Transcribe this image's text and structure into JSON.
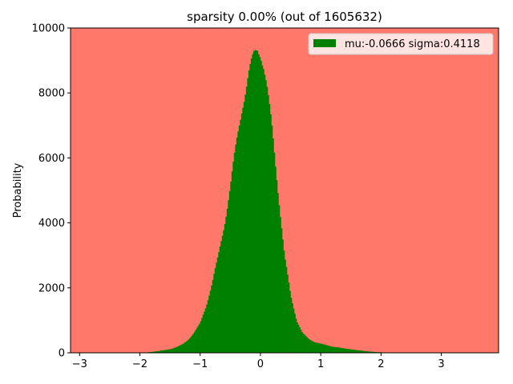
{
  "chart_data": {
    "type": "bar",
    "title": "sparsity 0.00% (out of 1605632)",
    "xlabel": "",
    "ylabel": "Probability",
    "xlim": [
      -3.15,
      3.95
    ],
    "ylim": [
      0,
      10000
    ],
    "xticks": [
      -3,
      -2,
      -1,
      0,
      1,
      2,
      3
    ],
    "yticks": [
      0,
      2000,
      4000,
      6000,
      8000,
      10000
    ],
    "grid": false,
    "legend_position": "top-right",
    "colors": {
      "background": "#ff7869",
      "bars": "#008000",
      "frame": "#000000"
    },
    "series": [
      {
        "name": "mu:-0.0666 sigma:0.4118",
        "bin_width": 0.02,
        "x": [
          -2.0,
          -1.9,
          -1.8,
          -1.7,
          -1.6,
          -1.5,
          -1.4,
          -1.3,
          -1.2,
          -1.1,
          -1.0,
          -0.9,
          -0.8,
          -0.7,
          -0.6,
          -0.5,
          -0.4,
          -0.3,
          -0.2,
          -0.1,
          -0.05,
          0.0,
          0.05,
          0.1,
          0.2,
          0.3,
          0.4,
          0.5,
          0.6,
          0.7,
          0.8,
          0.9,
          1.0,
          1.1,
          1.2,
          1.3,
          1.4,
          1.5,
          1.6,
          1.7,
          1.8,
          1.9,
          2.0,
          2.1,
          2.2,
          2.4
        ],
        "y": [
          0,
          10,
          30,
          50,
          80,
          110,
          170,
          250,
          400,
          620,
          900,
          1450,
          2150,
          2950,
          3950,
          5100,
          6400,
          7650,
          8550,
          9150,
          9350,
          9300,
          8900,
          8250,
          6700,
          4850,
          2950,
          1750,
          1000,
          600,
          420,
          330,
          280,
          230,
          190,
          160,
          130,
          110,
          80,
          60,
          40,
          25,
          15,
          8,
          4,
          0
        ]
      }
    ]
  }
}
